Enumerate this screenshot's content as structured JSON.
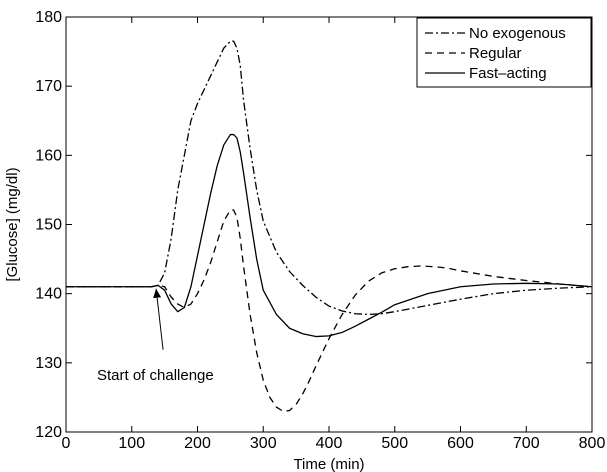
{
  "chart_data": {
    "type": "line",
    "xlabel": "Time (min)",
    "ylabel": "[Glucose] (mg/dl)",
    "xlim": [
      0,
      800
    ],
    "ylim": [
      120,
      180
    ],
    "xticks": [
      0,
      100,
      200,
      300,
      400,
      500,
      600,
      700,
      800
    ],
    "yticks": [
      120,
      130,
      140,
      150,
      160,
      170,
      180
    ],
    "grid": false,
    "legend_position": "top-right",
    "series": [
      {
        "name": "No exogenous",
        "style": "dashdot",
        "color": "#000000",
        "x": [
          0,
          130,
          140,
          150,
          160,
          170,
          180,
          190,
          200,
          210,
          220,
          230,
          240,
          250,
          255,
          260,
          265,
          270,
          280,
          290,
          300,
          320,
          340,
          360,
          380,
          400,
          420,
          440,
          460,
          480,
          500,
          550,
          600,
          650,
          700,
          750,
          800
        ],
        "y": [
          141,
          141,
          141.2,
          143,
          148,
          155,
          160,
          165,
          167.5,
          169.5,
          171.5,
          173.5,
          175.5,
          176.5,
          176.5,
          175.5,
          173,
          168,
          161,
          155,
          150.5,
          146,
          143.2,
          141.2,
          139.5,
          138.2,
          137.5,
          137.1,
          137,
          137.1,
          137.4,
          138.3,
          139.2,
          140,
          140.5,
          140.8,
          141
        ]
      },
      {
        "name": "Regular",
        "style": "dashed",
        "color": "#000000",
        "x": [
          0,
          130,
          140,
          150,
          160,
          170,
          180,
          190,
          200,
          210,
          220,
          230,
          240,
          250,
          255,
          260,
          265,
          270,
          280,
          290,
          300,
          310,
          320,
          330,
          340,
          350,
          360,
          370,
          380,
          400,
          420,
          440,
          460,
          480,
          500,
          520,
          540,
          560,
          580,
          600,
          650,
          700,
          750,
          800
        ],
        "y": [
          141,
          141,
          141.2,
          141,
          139.5,
          138.5,
          138,
          138.5,
          140,
          142,
          144.5,
          147.5,
          150.5,
          152.1,
          152.1,
          151,
          148,
          144,
          137,
          131.5,
          127.5,
          125,
          123.6,
          123,
          123.1,
          124,
          125.5,
          127.4,
          129.5,
          133.5,
          137,
          139.8,
          141.8,
          143,
          143.6,
          143.9,
          144,
          143.9,
          143.7,
          143.3,
          142.5,
          141.9,
          141.4,
          141
        ]
      },
      {
        "name": "Fast–acting",
        "style": "solid",
        "color": "#000000",
        "x": [
          0,
          130,
          140,
          150,
          160,
          170,
          180,
          190,
          200,
          210,
          220,
          230,
          240,
          250,
          255,
          260,
          265,
          270,
          280,
          290,
          300,
          320,
          340,
          360,
          380,
          400,
          420,
          440,
          460,
          480,
          500,
          550,
          600,
          650,
          700,
          750,
          800
        ],
        "y": [
          141,
          141,
          141.2,
          140.5,
          138.5,
          137.4,
          138,
          141,
          145.5,
          150,
          154.5,
          158.5,
          161.5,
          163,
          163,
          162.5,
          160.5,
          157.5,
          151,
          145,
          140.5,
          137,
          135,
          134.2,
          133.8,
          133.9,
          134.4,
          135.3,
          136.3,
          137.3,
          138.4,
          140,
          141,
          141.4,
          141.5,
          141.4,
          141
        ]
      }
    ],
    "annotations": [
      {
        "text": "Start of challenge",
        "arrow_to": {
          "x": 137,
          "y": 141
        }
      }
    ]
  }
}
